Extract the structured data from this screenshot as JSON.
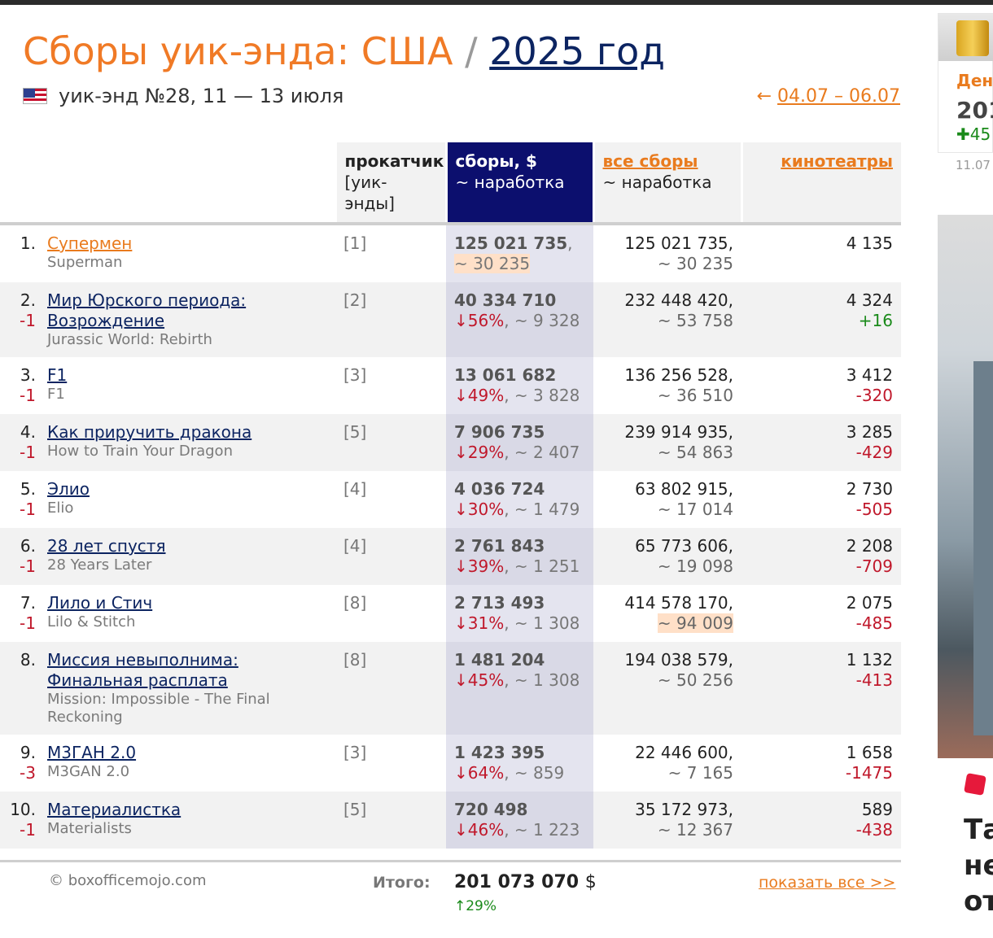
{
  "header": {
    "title_main": "Сборы уик-энда: США",
    "title_sep": "/",
    "title_year": "2025 год",
    "weekend_label": "уик-энд №28, 11 — 13 июля",
    "prev_arrow": "←",
    "prev_link": "04.07 – 06.07"
  },
  "columns": {
    "distributor": "прокатчик",
    "distributor_sub": "[уик-энды]",
    "gross": "сборы, $",
    "gross_sub": "~ наработка",
    "total": "все сборы",
    "total_sub": "~ наработка",
    "theaters": "кинотеатры"
  },
  "rows": [
    {
      "rank": "1.",
      "change": "",
      "title": "Супермен",
      "original": "Superman",
      "weeks": "[1]",
      "gross": "125 021 735",
      "gross_suffix": ",",
      "drop": "",
      "avg": "~ 30 235",
      "total": "125 021 735,",
      "total_avg": "~ 30 235",
      "theaters": "4 135",
      "theaters_change": ""
    },
    {
      "rank": "2.",
      "change": "-1",
      "title": "Мир Юрского периода: Возрождение",
      "original": "Jurassic World: Rebirth",
      "weeks": "[2]",
      "gross": "40 334 710",
      "gross_suffix": "",
      "drop": "↓56%",
      "avg": ", ~ 9 328",
      "total": "232 448 420,",
      "total_avg": "~ 53 758",
      "theaters": "4 324",
      "theaters_change": "+16"
    },
    {
      "rank": "3.",
      "change": "-1",
      "title": "F1",
      "original": "F1",
      "weeks": "[3]",
      "gross": "13 061 682",
      "gross_suffix": "",
      "drop": "↓49%",
      "avg": ", ~ 3 828",
      "total": "136 256 528,",
      "total_avg": "~ 36 510",
      "theaters": "3 412",
      "theaters_change": "-320"
    },
    {
      "rank": "4.",
      "change": "-1",
      "title": "Как приручить дракона",
      "original": "How to Train Your Dragon",
      "weeks": "[5]",
      "gross": "7 906 735",
      "gross_suffix": "",
      "drop": "↓29%",
      "avg": ", ~ 2 407",
      "total": "239 914 935,",
      "total_avg": "~ 54 863",
      "theaters": "3 285",
      "theaters_change": "-429"
    },
    {
      "rank": "5.",
      "change": "-1",
      "title": "Элио",
      "original": "Elio",
      "weeks": "[4]",
      "gross": "4 036 724",
      "gross_suffix": "",
      "drop": "↓30%",
      "avg": ", ~ 1 479",
      "total": "63 802 915,",
      "total_avg": "~ 17 014",
      "theaters": "2 730",
      "theaters_change": "-505"
    },
    {
      "rank": "6.",
      "change": "-1",
      "title": "28 лет спустя",
      "original": "28 Years Later",
      "weeks": "[4]",
      "gross": "2 761 843",
      "gross_suffix": "",
      "drop": "↓39%",
      "avg": ", ~ 1 251",
      "total": "65 773 606,",
      "total_avg": "~ 19 098",
      "theaters": "2 208",
      "theaters_change": "-709"
    },
    {
      "rank": "7.",
      "change": "-1",
      "title": "Лило и Стич",
      "original": "Lilo & Stitch",
      "weeks": "[8]",
      "gross": "2 713 493",
      "gross_suffix": "",
      "drop": "↓31%",
      "avg": ", ~ 1 308",
      "total": "414 578 170,",
      "total_avg": "~ 94 009",
      "theaters": "2 075",
      "theaters_change": "-485"
    },
    {
      "rank": "8.",
      "change": "",
      "title": "Миссия невыполнима: Финальная расплата",
      "original": "Mission: Impossible - The Final Reckoning",
      "weeks": "[8]",
      "gross": "1 481 204",
      "gross_suffix": "",
      "drop": "↓45%",
      "avg": ", ~ 1 308",
      "total": "194 038 579,",
      "total_avg": "~ 50 256",
      "theaters": "1 132",
      "theaters_change": "-413"
    },
    {
      "rank": "9.",
      "change": "-3",
      "title": "M3ГАН 2.0",
      "original": "M3GAN 2.0",
      "weeks": "[3]",
      "gross": "1 423 395",
      "gross_suffix": "",
      "drop": "↓64%",
      "avg": ", ~ 859",
      "total": "22 446 600,",
      "total_avg": "~ 7 165",
      "theaters": "1 658",
      "theaters_change": "-1475"
    },
    {
      "rank": "10.",
      "change": "-1",
      "title": "Материалистка",
      "original": "Materialists",
      "weeks": "[5]",
      "gross": "720 498",
      "gross_suffix": "",
      "drop": "↓46%",
      "avg": ", ~ 1 223",
      "total": "35 172 973,",
      "total_avg": "~ 12 367",
      "theaters": "589",
      "theaters_change": "-438"
    }
  ],
  "footer": {
    "copyright": "© boxofficemojo.com",
    "total_label": "Итого:",
    "total_sum": "201 073 070",
    "currency": "$",
    "total_change": "↑29%",
    "show_all": "показать все >>"
  },
  "side": {
    "label": "Ден",
    "year": "201",
    "delta": "✚45",
    "date": "11.07",
    "headline_1": "Та",
    "headline_2": "не",
    "headline_3": "от"
  },
  "colors": {
    "accent_orange": "#f07a26",
    "link_navy": "#0c2461",
    "selected_header": "#0c0f6e",
    "negative_red": "#c0182b",
    "positive_green": "#1a8a1a"
  }
}
